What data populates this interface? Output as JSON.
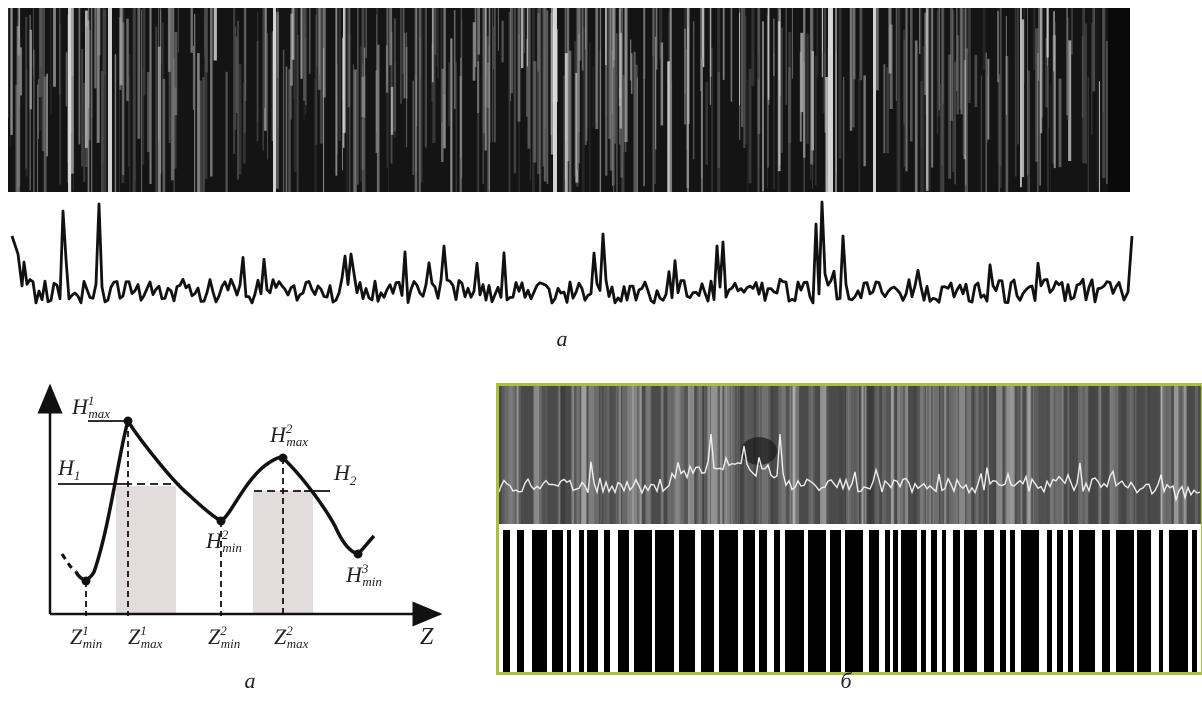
{
  "captions": {
    "top": "а",
    "bottom_left": "а",
    "bottom_right": "б"
  },
  "schematic": {
    "z_axis_label": "Z",
    "levels": [
      {
        "base": "H",
        "sub": "1"
      },
      {
        "base": "H",
        "sub": "2"
      }
    ],
    "points": [
      {
        "base": "H",
        "sub": "max",
        "sup": "1"
      },
      {
        "base": "H",
        "sub": "max",
        "sup": "2"
      },
      {
        "base": "H",
        "sub": "min",
        "sup": "2"
      },
      {
        "base": "H",
        "sub": "min",
        "sup": "3"
      }
    ],
    "z_ticks": [
      {
        "base": "Z",
        "sub": "min",
        "sup": "1"
      },
      {
        "base": "Z",
        "sub": "max",
        "sup": "1"
      },
      {
        "base": "Z",
        "sub": "min",
        "sup": "2"
      },
      {
        "base": "Z",
        "sub": "max",
        "sup": "2"
      }
    ]
  },
  "colors": {
    "panel_border": "#a8c23a",
    "highlight_band": "#e2dcdc"
  }
}
